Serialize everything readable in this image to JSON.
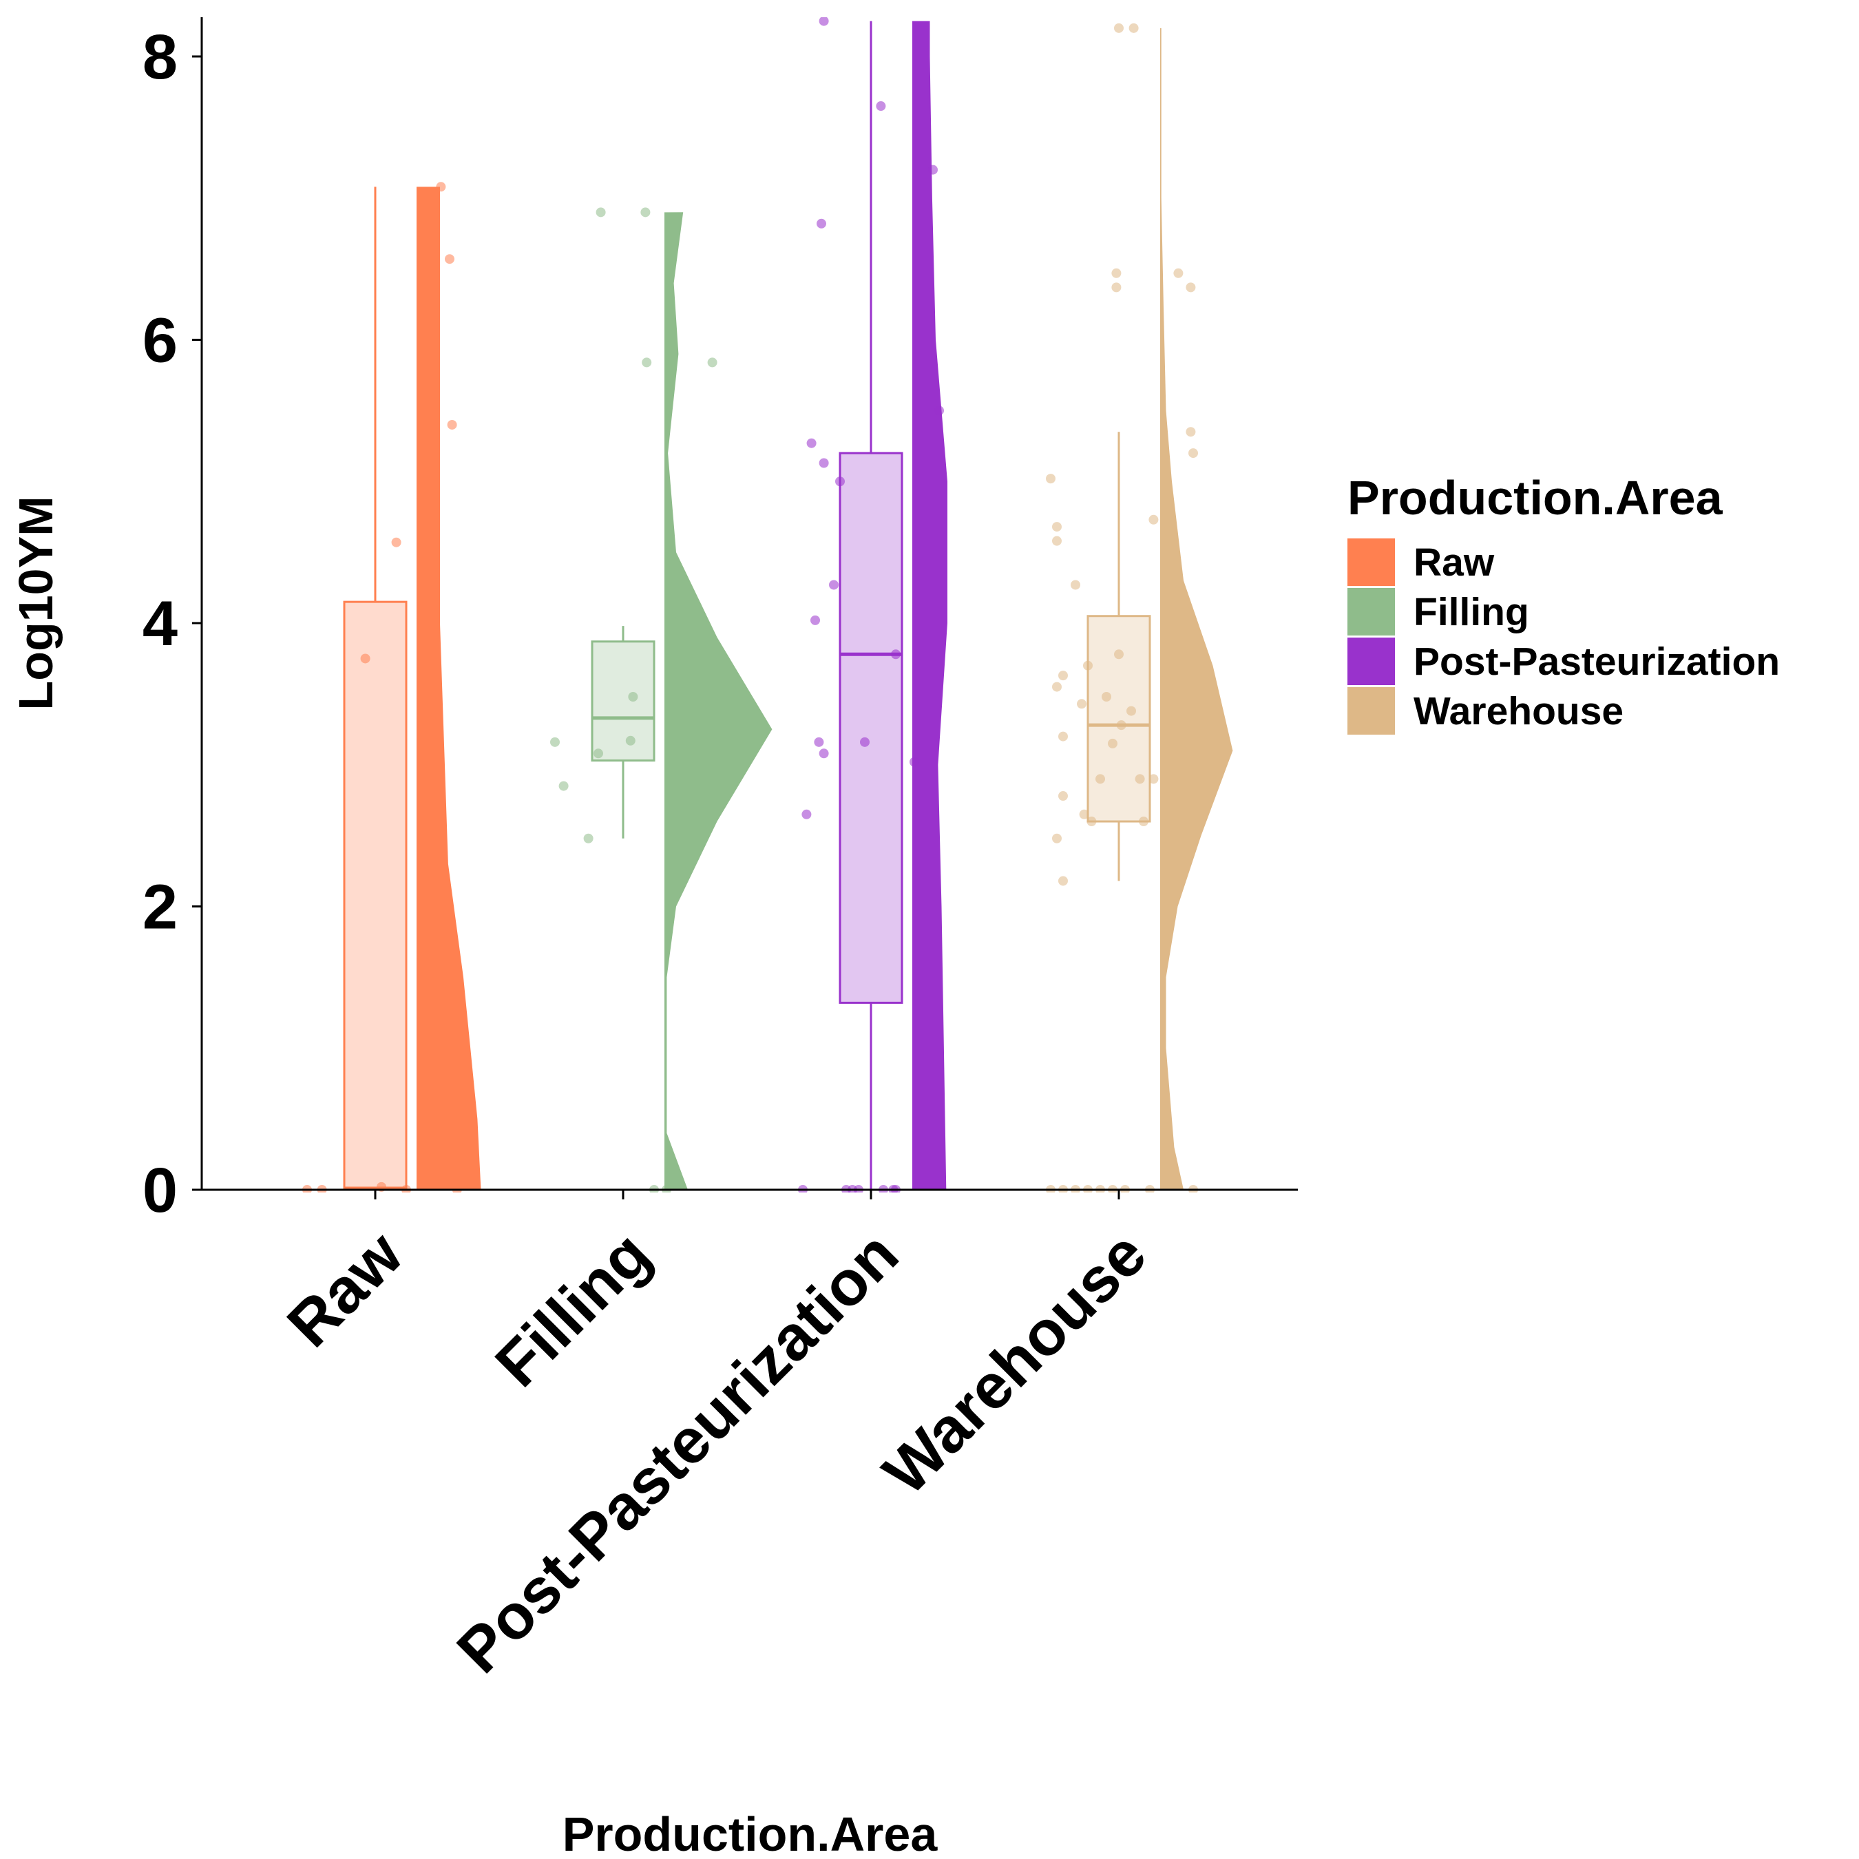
{
  "chart_data": {
    "type": "raincloud",
    "xlabel": "Production.Area",
    "ylabel": "Log10YM",
    "ylim": [
      0,
      8.25
    ],
    "yticks": [
      "0",
      "2",
      "4",
      "6",
      "8"
    ],
    "grid": false,
    "legend": {
      "title": "Production.Area",
      "position": "right"
    },
    "categories": [
      "Raw",
      "Filling",
      "Post-Pasteurization",
      "Warehouse"
    ],
    "series": [
      {
        "name": "Raw",
        "color": "#FF8050",
        "box": {
          "q1": 0,
          "median": 0.01,
          "q3": 4.15,
          "whisker_low": 0,
          "whisker_high": 7.08
        },
        "density": {
          "max_y": 7.08,
          "profile": [
            [
              0,
              0.55
            ],
            [
              0.5,
              0.52
            ],
            [
              1.5,
              0.4
            ],
            [
              2.3,
              0.27
            ],
            [
              4,
              0.2
            ],
            [
              7.08,
              0.2
            ]
          ]
        },
        "points": [
          {
            "x": -0.55,
            "y": 0
          },
          {
            "x": -0.43,
            "y": 0
          },
          {
            "x": 0.05,
            "y": 0.02
          },
          {
            "x": 0.25,
            "y": 0
          },
          {
            "x": -0.08,
            "y": 3.75
          },
          {
            "x": 0.17,
            "y": 4.57
          },
          {
            "x": 0.62,
            "y": 5.4
          },
          {
            "x": 0.6,
            "y": 6.57
          },
          {
            "x": 0.53,
            "y": 7.08
          },
          {
            "x": 0.66,
            "y": 0
          }
        ]
      },
      {
        "name": "Filling",
        "color": "#8FBC8B",
        "box": {
          "q1": 3.03,
          "median": 3.33,
          "q3": 3.87,
          "whisker_low": 2.48,
          "whisker_high": 3.98
        },
        "density": {
          "max_y": 6.9,
          "profile": [
            [
              0,
              0.2
            ],
            [
              0.4,
              0.02
            ],
            [
              1.5,
              0.02
            ],
            [
              2.0,
              0.1
            ],
            [
              2.6,
              0.45
            ],
            [
              3.25,
              0.92
            ],
            [
              3.9,
              0.45
            ],
            [
              4.5,
              0.1
            ],
            [
              5.2,
              0.03
            ],
            [
              5.9,
              0.12
            ],
            [
              6.4,
              0.08
            ],
            [
              6.9,
              0.16
            ]
          ]
        },
        "points": [
          {
            "x": -0.55,
            "y": 3.16
          },
          {
            "x": -0.48,
            "y": 2.85
          },
          {
            "x": -0.2,
            "y": 3.08
          },
          {
            "x": -0.28,
            "y": 2.48
          },
          {
            "x": 0.08,
            "y": 3.48
          },
          {
            "x": -0.18,
            "y": 6.9
          },
          {
            "x": 0.18,
            "y": 6.9
          },
          {
            "x": 0.19,
            "y": 5.84
          },
          {
            "x": 0.06,
            "y": 3.17
          },
          {
            "x": 0.25,
            "y": 0
          },
          {
            "x": 0.35,
            "y": 0
          },
          {
            "x": 0.72,
            "y": 5.84
          }
        ]
      },
      {
        "name": "Post-Pasteurization",
        "color": "#9932CC",
        "box": {
          "q1": 1.32,
          "median": 3.78,
          "q3": 5.2,
          "whisker_low": 0,
          "whisker_high": 8.25
        },
        "density": {
          "max_y": 8.25,
          "profile": [
            [
              0,
              0.29
            ],
            [
              1,
              0.27
            ],
            [
              2,
              0.25
            ],
            [
              3,
              0.22
            ],
            [
              4,
              0.3
            ],
            [
              5,
              0.3
            ],
            [
              6,
              0.2
            ],
            [
              7,
              0.17
            ],
            [
              8,
              0.15
            ],
            [
              8.25,
              0.15
            ]
          ]
        },
        "points": [
          {
            "x": -0.55,
            "y": 0
          },
          {
            "x": -0.2,
            "y": 0
          },
          {
            "x": -0.15,
            "y": 0
          },
          {
            "x": -0.1,
            "y": 0
          },
          {
            "x": 0.1,
            "y": 0
          },
          {
            "x": 0.18,
            "y": 0
          },
          {
            "x": 0.2,
            "y": 0
          },
          {
            "x": -0.52,
            "y": 2.65
          },
          {
            "x": -0.38,
            "y": 3.08
          },
          {
            "x": -0.42,
            "y": 3.16
          },
          {
            "x": -0.05,
            "y": 3.16
          },
          {
            "x": -0.45,
            "y": 4.02
          },
          {
            "x": -0.3,
            "y": 4.27
          },
          {
            "x": -0.25,
            "y": 5.0
          },
          {
            "x": -0.38,
            "y": 5.13
          },
          {
            "x": -0.48,
            "y": 5.27
          },
          {
            "x": 0.2,
            "y": 3.78
          },
          {
            "x": -0.4,
            "y": 6.82
          },
          {
            "x": 0.08,
            "y": 7.65
          },
          {
            "x": 0.5,
            "y": 7.2
          },
          {
            "x": 0.55,
            "y": 5.5
          },
          {
            "x": 0.35,
            "y": 3.02
          },
          {
            "x": -0.38,
            "y": 8.25
          }
        ]
      },
      {
        "name": "Warehouse",
        "color": "#DEB887",
        "box": {
          "q1": 2.6,
          "median": 3.28,
          "q3": 4.05,
          "whisker_low": 2.18,
          "whisker_high": 5.35
        },
        "density": {
          "max_y": 8.2,
          "profile": [
            [
              0,
              0.2
            ],
            [
              0.3,
              0.12
            ],
            [
              1.0,
              0.05
            ],
            [
              1.5,
              0.05
            ],
            [
              2.0,
              0.15
            ],
            [
              2.5,
              0.35
            ],
            [
              3.1,
              0.62
            ],
            [
              3.7,
              0.45
            ],
            [
              4.3,
              0.2
            ],
            [
              5.0,
              0.1
            ],
            [
              5.5,
              0.05
            ],
            [
              6.2,
              0.03
            ],
            [
              7.0,
              0.01
            ],
            [
              8.2,
              0.01
            ]
          ]
        },
        "points": [
          {
            "x": -0.55,
            "y": 0
          },
          {
            "x": -0.45,
            "y": 0
          },
          {
            "x": -0.35,
            "y": 0
          },
          {
            "x": -0.25,
            "y": 0
          },
          {
            "x": -0.15,
            "y": 0
          },
          {
            "x": -0.05,
            "y": 0
          },
          {
            "x": 0.05,
            "y": 0
          },
          {
            "x": 0.6,
            "y": 0
          },
          {
            "x": -0.45,
            "y": 2.18
          },
          {
            "x": -0.5,
            "y": 2.48
          },
          {
            "x": -0.45,
            "y": 2.78
          },
          {
            "x": -0.28,
            "y": 2.65
          },
          {
            "x": -0.22,
            "y": 2.6
          },
          {
            "x": 0.2,
            "y": 2.6
          },
          {
            "x": -0.15,
            "y": 2.9
          },
          {
            "x": 0.17,
            "y": 2.9
          },
          {
            "x": 0.28,
            "y": 2.9
          },
          {
            "x": -0.45,
            "y": 3.2
          },
          {
            "x": -0.05,
            "y": 3.15
          },
          {
            "x": 0.1,
            "y": 3.38
          },
          {
            "x": -0.3,
            "y": 3.43
          },
          {
            "x": -0.1,
            "y": 3.48
          },
          {
            "x": 0.02,
            "y": 3.28
          },
          {
            "x": -0.5,
            "y": 3.55
          },
          {
            "x": -0.45,
            "y": 3.63
          },
          {
            "x": -0.25,
            "y": 3.7
          },
          {
            "x": 0.0,
            "y": 3.78
          },
          {
            "x": 0.38,
            "y": 3.6
          },
          {
            "x": -0.35,
            "y": 4.27
          },
          {
            "x": -0.5,
            "y": 4.58
          },
          {
            "x": -0.5,
            "y": 4.68
          },
          {
            "x": -0.55,
            "y": 5.02
          },
          {
            "x": 0.28,
            "y": 4.73
          },
          {
            "x": 0.4,
            "y": 4.65
          },
          {
            "x": 0.6,
            "y": 5.2
          },
          {
            "x": 0.58,
            "y": 5.35
          },
          {
            "x": 0.58,
            "y": 6.37
          },
          {
            "x": 0.48,
            "y": 6.47
          },
          {
            "x": -0.02,
            "y": 6.37
          },
          {
            "x": -0.02,
            "y": 6.47
          },
          {
            "x": 0.0,
            "y": 8.2
          },
          {
            "x": 0.12,
            "y": 8.2
          },
          {
            "x": 0.25,
            "y": 0
          }
        ]
      }
    ]
  }
}
